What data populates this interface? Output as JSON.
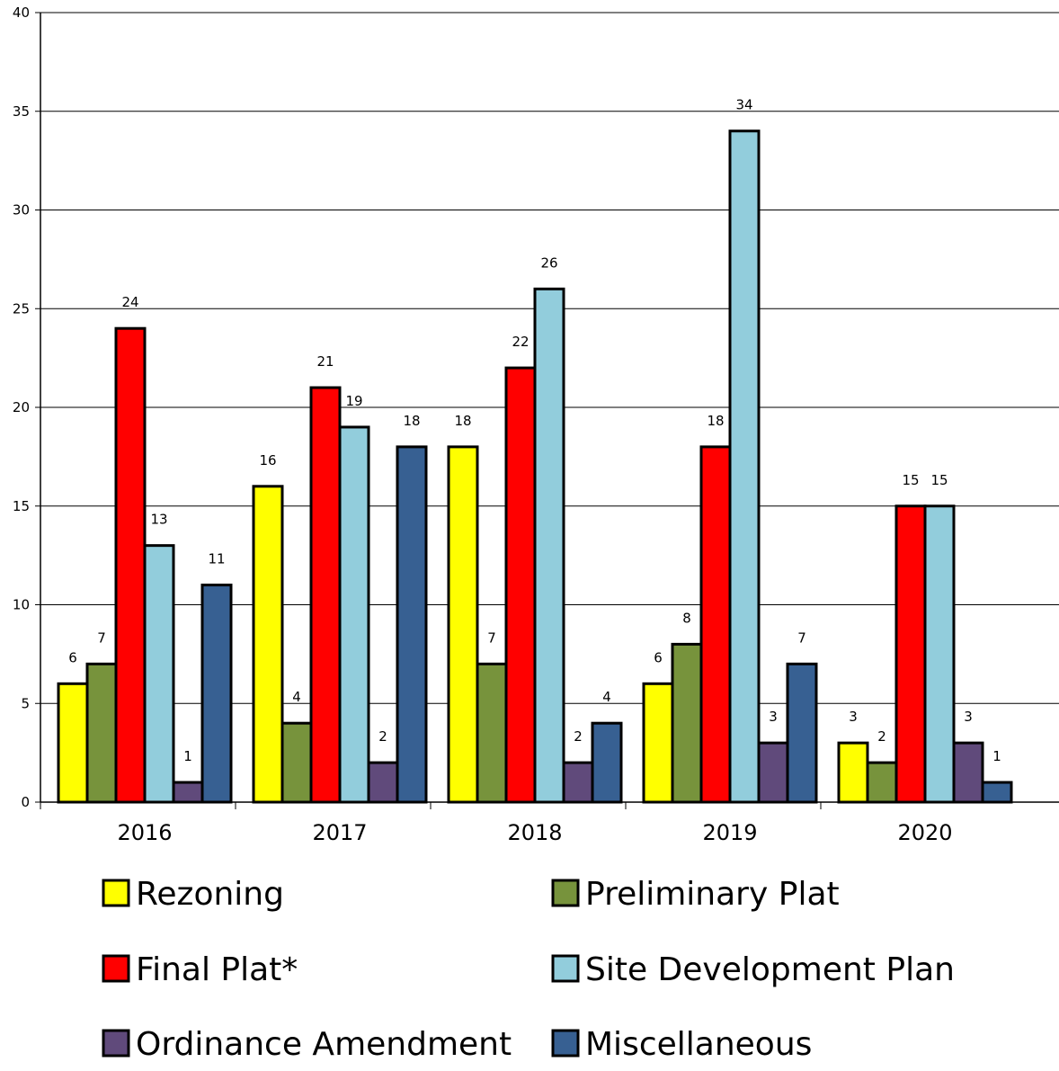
{
  "chart_data": {
    "type": "bar",
    "categories": [
      "2016",
      "2017",
      "2018",
      "2019",
      "2020"
    ],
    "ylim": [
      0,
      40
    ],
    "yticks": [
      0,
      5,
      10,
      15,
      20,
      25,
      30,
      35,
      40
    ],
    "grid": true,
    "legend_position": "bottom",
    "data_labels": true,
    "series": [
      {
        "name": "Rezoning",
        "color": "#ffff00",
        "values": [
          6,
          16,
          18,
          6,
          3
        ]
      },
      {
        "name": "Preliminary Plat",
        "color": "#77933c",
        "values": [
          7,
          4,
          7,
          8,
          2
        ]
      },
      {
        "name": "Final Plat*",
        "color": "#ff0000",
        "values": [
          24,
          21,
          22,
          18,
          15
        ]
      },
      {
        "name": "Site Development Plan",
        "color": "#92cddc",
        "values": [
          13,
          19,
          26,
          34,
          15
        ]
      },
      {
        "name": "Ordinance Amendment",
        "color": "#604a7b",
        "values": [
          1,
          2,
          2,
          3,
          3
        ]
      },
      {
        "name": "Miscellaneous",
        "color": "#376092",
        "values": [
          11,
          18,
          4,
          7,
          1
        ]
      }
    ]
  }
}
